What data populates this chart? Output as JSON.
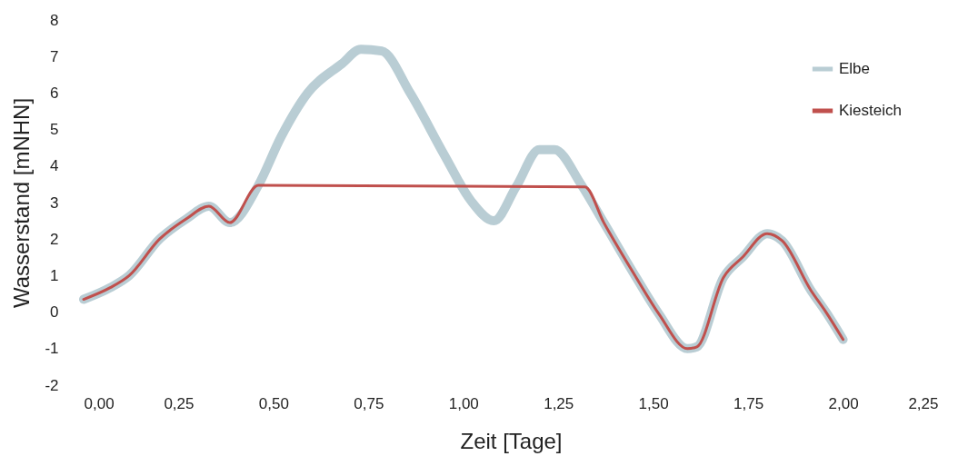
{
  "chart_data": {
    "type": "line",
    "xlabel": "Zeit [Tage]",
    "ylabel": "Wasserstand [mNHN]",
    "legend": "top right",
    "xlim": [
      0,
      2.25
    ],
    "xticks": [
      {
        "value": 0,
        "label": "0,00"
      },
      {
        "value": 0.25,
        "label": "0,25"
      },
      {
        "value": 0.5,
        "label": "0,50"
      },
      {
        "value": 0.75,
        "label": "0,75"
      },
      {
        "value": 1,
        "label": "1,00"
      },
      {
        "value": 1.25,
        "label": "1,25"
      },
      {
        "value": 1.5,
        "label": "1,50"
      },
      {
        "value": 1.75,
        "label": "1,75"
      },
      {
        "value": 2,
        "label": "2,00"
      },
      {
        "value": 2.25,
        "label": "2,25"
      }
    ],
    "ylim": [
      -2,
      8
    ],
    "yticks": [
      -2,
      -1,
      0,
      1,
      2,
      3,
      4,
      5,
      6,
      7,
      8
    ],
    "series": [
      {
        "name": "Elbe",
        "color": "#b9cdd4",
        "x": [
          0,
          0.07,
          0.12,
          0.2,
          0.27,
          0.33,
          0.385,
          0.46,
          0.52,
          0.59,
          0.68,
          0.73,
          0.785,
          0.86,
          0.95,
          1.02,
          1.08,
          1.14,
          1.2,
          1.24,
          1.31,
          1.37,
          1.455,
          1.515,
          1.59,
          1.615,
          1.685,
          1.735,
          1.8,
          1.84,
          1.915,
          1.955,
          2.0
        ],
        "values": [
          0.35,
          0.67,
          1.0,
          2.0,
          2.55,
          2.9,
          2.45,
          3.47,
          4.8,
          6.0,
          6.8,
          7.2,
          7.15,
          6.0,
          4.3,
          3.05,
          2.5,
          3.45,
          4.45,
          4.45,
          3.5,
          2.45,
          0.95,
          -0.05,
          -1.0,
          -0.95,
          0.95,
          1.5,
          2.15,
          1.95,
          0.6,
          0.0,
          -0.75
        ]
      },
      {
        "name": "Kiesteich",
        "color": "#c0504d",
        "x": [
          0,
          0.07,
          0.12,
          0.2,
          0.27,
          0.33,
          0.385,
          0.46,
          1.32,
          1.37,
          1.455,
          1.515,
          1.59,
          1.615,
          1.685,
          1.735,
          1.8,
          1.84,
          1.915,
          1.955,
          2.0
        ],
        "values": [
          0.35,
          0.67,
          1.0,
          2.0,
          2.55,
          2.9,
          2.45,
          3.47,
          3.43,
          2.45,
          0.95,
          -0.05,
          -1.0,
          -0.95,
          0.95,
          1.5,
          2.15,
          1.95,
          0.6,
          0.0,
          -0.75
        ]
      }
    ]
  }
}
